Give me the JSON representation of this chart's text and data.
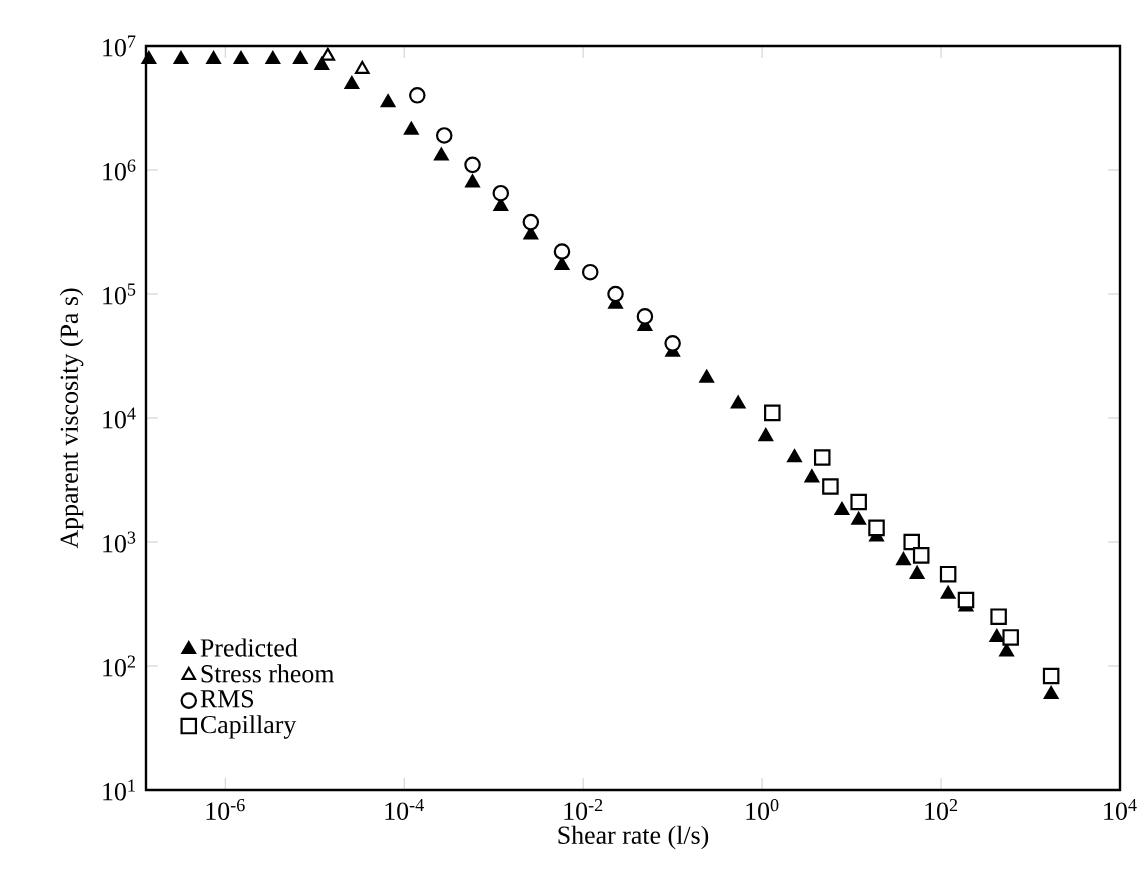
{
  "chart_data": {
    "type": "scatter",
    "xlabel": "Shear rate (l/s)",
    "ylabel": "Apparent viscosity (Pa s)",
    "log": "xy",
    "legend": "bottom left",
    "grid": false,
    "xlim": [
      1.3e-07,
      10000
    ],
    "ylim": [
      10,
      10000000
    ],
    "xticks": [
      {
        "value": 1e-06,
        "label": "10$^{-6}$"
      },
      {
        "value": 0.0001,
        "label": "10$^{-4}$"
      },
      {
        "value": 0.01,
        "label": "10$^{-2}$"
      },
      {
        "value": 1,
        "label": "10$^{0}$"
      },
      {
        "value": 100,
        "label": "10$^{2}$"
      },
      {
        "value": 10000,
        "label": "10$^{4}$"
      }
    ],
    "yticks": [
      {
        "value": 10,
        "label": "10$^{1}$"
      },
      {
        "value": 100,
        "label": "10$^{2}$"
      },
      {
        "value": 1000,
        "label": "10$^{3}$"
      },
      {
        "value": 10000,
        "label": "10$^{4}$"
      },
      {
        "value": 100000,
        "label": "10$^{5}$"
      },
      {
        "value": 1000000,
        "label": "10$^{6}$"
      },
      {
        "value": 10000000,
        "label": "10$^{7}$"
      }
    ],
    "series": [
      {
        "name": "Predicted",
        "color": "#000000",
        "marker": "triangle",
        "x": [
          1.4e-07,
          3.2e-07,
          7.4e-07,
          1.5e-06,
          3.4e-06,
          6.9e-06,
          1.2e-05,
          2.6e-05,
          6.6e-05,
          0.00012,
          0.00026,
          0.00058,
          0.0012,
          0.0026,
          0.0058,
          0.023,
          0.049,
          0.1,
          0.24,
          0.54,
          1.1,
          2.3,
          3.6,
          7.8,
          12,
          19,
          38,
          54,
          120,
          190,
          420,
          540,
          1700
        ],
        "values": [
          7800000,
          7800000,
          7800000,
          7800000,
          7800000,
          7800000,
          7000000,
          4900000,
          3500000,
          2100000,
          1300000,
          790000,
          510000,
          300000,
          170000,
          83000,
          55000,
          34000,
          21000,
          13000,
          7100,
          4800,
          3300,
          1800,
          1500,
          1100,
          710,
          550,
          380,
          300,
          170,
          130,
          59
        ]
      },
      {
        "name": "Stress rheom",
        "color": "#000000",
        "marker": "triangle-open",
        "x": [
          1.4e-05,
          3.4e-05
        ],
        "values": [
          8300000,
          6500000
        ]
      },
      {
        "name": "RMS",
        "color": "#000000",
        "marker": "circle-open",
        "x": [
          0.00014,
          0.00028,
          0.00058,
          0.0012,
          0.0026,
          0.0058,
          0.012,
          0.023,
          0.049,
          0.1
        ],
        "values": [
          4000000,
          1900000,
          1100000,
          650000,
          380000,
          220000,
          150000,
          100000,
          66000,
          40000
        ]
      },
      {
        "name": "Capillary",
        "color": "#000000",
        "marker": "square-open",
        "x": [
          1.3,
          4.7,
          5.8,
          12,
          19,
          47,
          60,
          120,
          190,
          440,
          600,
          1700
        ],
        "values": [
          11000,
          4800,
          2800,
          2100,
          1300,
          1000,
          780,
          550,
          340,
          250,
          170,
          83
        ]
      }
    ]
  }
}
